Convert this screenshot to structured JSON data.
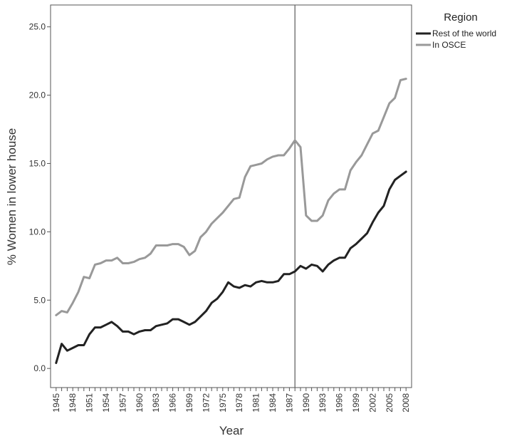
{
  "chart_data": {
    "type": "line",
    "xlabel": "Year",
    "ylabel": "% Women in lower house",
    "ylim": [
      -1.4,
      26.6
    ],
    "xlim": [
      1944,
      2009
    ],
    "y_ticks": [
      "0.0",
      "5.0",
      "10.0",
      "15.0",
      "20.0",
      "25.0"
    ],
    "x_ticks": [
      "1945",
      "1948",
      "1951",
      "1954",
      "1957",
      "1960",
      "1963",
      "1966",
      "1969",
      "1972",
      "1975",
      "1978",
      "1981",
      "1984",
      "1987",
      "1990",
      "1993",
      "1996",
      "1999",
      "2002",
      "2005",
      "2008"
    ],
    "reference_line_x": 1988,
    "grid": false,
    "legend": {
      "title": "Region",
      "position": "top-right"
    },
    "x": [
      1945,
      1946,
      1947,
      1948,
      1949,
      1950,
      1951,
      1952,
      1953,
      1954,
      1955,
      1956,
      1957,
      1958,
      1959,
      1960,
      1961,
      1962,
      1963,
      1964,
      1965,
      1966,
      1967,
      1968,
      1969,
      1970,
      1971,
      1972,
      1973,
      1974,
      1975,
      1976,
      1977,
      1978,
      1979,
      1980,
      1981,
      1982,
      1983,
      1984,
      1985,
      1986,
      1987,
      1988,
      1989,
      1990,
      1991,
      1992,
      1993,
      1994,
      1995,
      1996,
      1997,
      1998,
      1999,
      2000,
      2001,
      2002,
      2003,
      2004,
      2005,
      2006,
      2007,
      2008
    ],
    "series": [
      {
        "name": "Rest of the world",
        "color": "#222222",
        "values": [
          0.4,
          1.8,
          1.3,
          1.5,
          1.7,
          1.7,
          2.5,
          3.0,
          3.0,
          3.2,
          3.4,
          3.1,
          2.7,
          2.7,
          2.5,
          2.7,
          2.8,
          2.8,
          3.1,
          3.2,
          3.3,
          3.6,
          3.6,
          3.4,
          3.2,
          3.4,
          3.8,
          4.2,
          4.8,
          5.1,
          5.6,
          6.3,
          6.0,
          5.9,
          6.1,
          6.0,
          6.3,
          6.4,
          6.3,
          6.3,
          6.4,
          6.9,
          6.9,
          7.1,
          7.5,
          7.3,
          7.6,
          7.5,
          7.1,
          7.6,
          7.9,
          8.1,
          8.1,
          8.8,
          9.1,
          9.5,
          9.9,
          10.7,
          11.4,
          11.9,
          13.1,
          13.8,
          14.1,
          14.4
        ]
      },
      {
        "name": "In OSCE",
        "color": "#999999",
        "values": [
          3.9,
          4.2,
          4.1,
          4.8,
          5.6,
          6.7,
          6.6,
          7.6,
          7.7,
          7.9,
          7.9,
          8.1,
          7.7,
          7.7,
          7.8,
          8.0,
          8.1,
          8.4,
          9.0,
          9.0,
          9.0,
          9.1,
          9.1,
          8.9,
          8.3,
          8.6,
          9.6,
          10.0,
          10.6,
          11.0,
          11.4,
          11.9,
          12.4,
          12.5,
          14.0,
          14.8,
          14.9,
          15.0,
          15.3,
          15.5,
          15.6,
          15.6,
          16.1,
          16.7,
          16.2,
          11.2,
          10.8,
          10.8,
          11.2,
          12.3,
          12.8,
          13.1,
          13.1,
          14.5,
          15.1,
          15.6,
          16.4,
          17.2,
          17.4,
          18.4,
          19.4,
          19.8,
          21.1,
          21.2
        ]
      }
    ]
  }
}
